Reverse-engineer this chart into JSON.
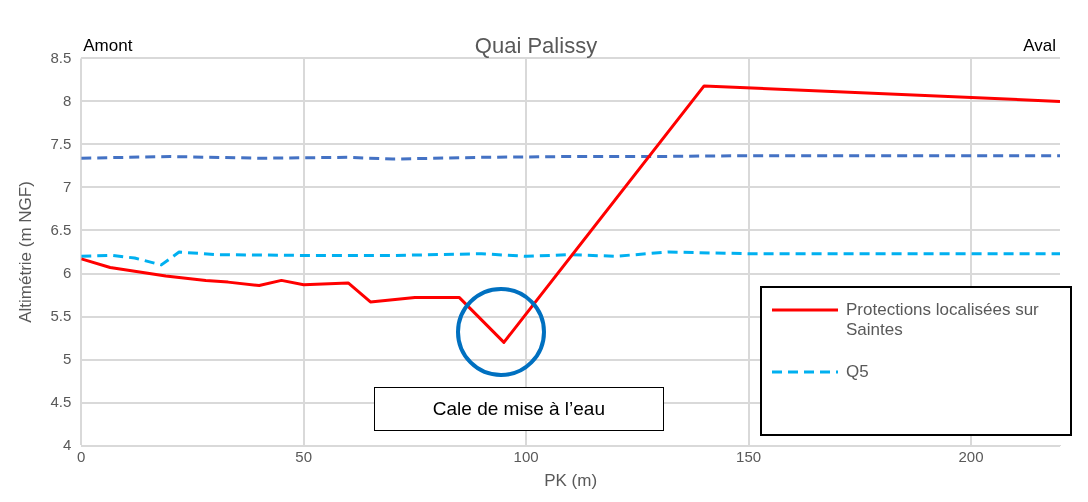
{
  "chart_data": {
    "type": "line",
    "title": "Quai Palissy",
    "xlabel": "PK (m)",
    "ylabel": "Altimétrie (m NGF)",
    "xlim": [
      0,
      220
    ],
    "xticks": [
      0,
      50,
      100,
      150,
      200
    ],
    "ylim": [
      4,
      8.5
    ],
    "yticks": [
      4,
      4.5,
      5,
      5.5,
      6,
      6.5,
      7,
      7.5,
      8,
      8.5
    ],
    "grid": true,
    "legend": "bottom right",
    "marker": "none",
    "series": [
      {
        "name": "Protections localisées sur Saintes",
        "color": "#ff0000",
        "line_style": "solid",
        "x": [
          0,
          6.5,
          19,
          28,
          33,
          40,
          45,
          50,
          60,
          65,
          75,
          85,
          95,
          140,
          220
        ],
        "values": [
          6.17,
          6.07,
          5.97,
          5.92,
          5.9,
          5.86,
          5.92,
          5.87,
          5.89,
          5.67,
          5.72,
          5.72,
          5.2,
          8.18,
          8.0
        ]
      },
      {
        "name": "Q5",
        "color": "#00b0f0",
        "line_style": "dashed",
        "x": [
          0,
          7,
          12,
          18,
          22,
          30,
          50,
          70,
          90,
          100,
          110,
          120,
          132,
          150,
          180,
          220
        ],
        "values": [
          6.2,
          6.21,
          6.18,
          6.1,
          6.25,
          6.22,
          6.21,
          6.21,
          6.23,
          6.2,
          6.22,
          6.2,
          6.25,
          6.23,
          6.23,
          6.23
        ]
      },
      {
        "color": "#4472c4",
        "line_style": "dashed",
        "x": [
          0,
          20,
          40,
          60,
          70,
          90,
          110,
          130,
          150,
          180,
          220
        ],
        "values": [
          7.34,
          7.36,
          7.34,
          7.35,
          7.33,
          7.35,
          7.36,
          7.36,
          7.37,
          7.37,
          7.37
        ]
      }
    ],
    "annotations": [
      "Amont",
      "Aval",
      {
        "text": "Cale de mise à l’eau",
        "x": 95,
        "y": 5.2
      }
    ]
  }
}
